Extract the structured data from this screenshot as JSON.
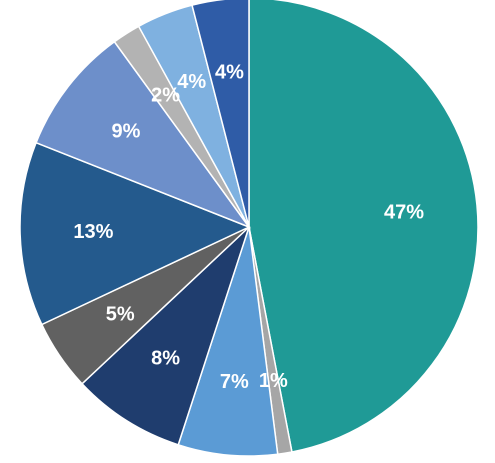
{
  "chart_data": {
    "type": "pie",
    "start_angle_deg": 0,
    "direction": "clockwise",
    "slices": [
      {
        "value": 47,
        "label": "47%",
        "color": "#1f9a96"
      },
      {
        "value": 1,
        "label": "1%",
        "color": "#a6a6a6"
      },
      {
        "value": 7,
        "label": "7%",
        "color": "#5b9bd5"
      },
      {
        "value": 8,
        "label": "8%",
        "color": "#1f3d6e"
      },
      {
        "value": 5,
        "label": "5%",
        "color": "#616161"
      },
      {
        "value": 13,
        "label": "13%",
        "color": "#245a8d"
      },
      {
        "value": 9,
        "label": "9%",
        "color": "#6d8fca"
      },
      {
        "value": 2,
        "label": "2%",
        "color": "#b3b3b3"
      },
      {
        "value": 4,
        "label": "4%",
        "color": "#7fb1e0"
      },
      {
        "value": 4,
        "label": "4%",
        "color": "#2f5ca7"
      }
    ]
  }
}
